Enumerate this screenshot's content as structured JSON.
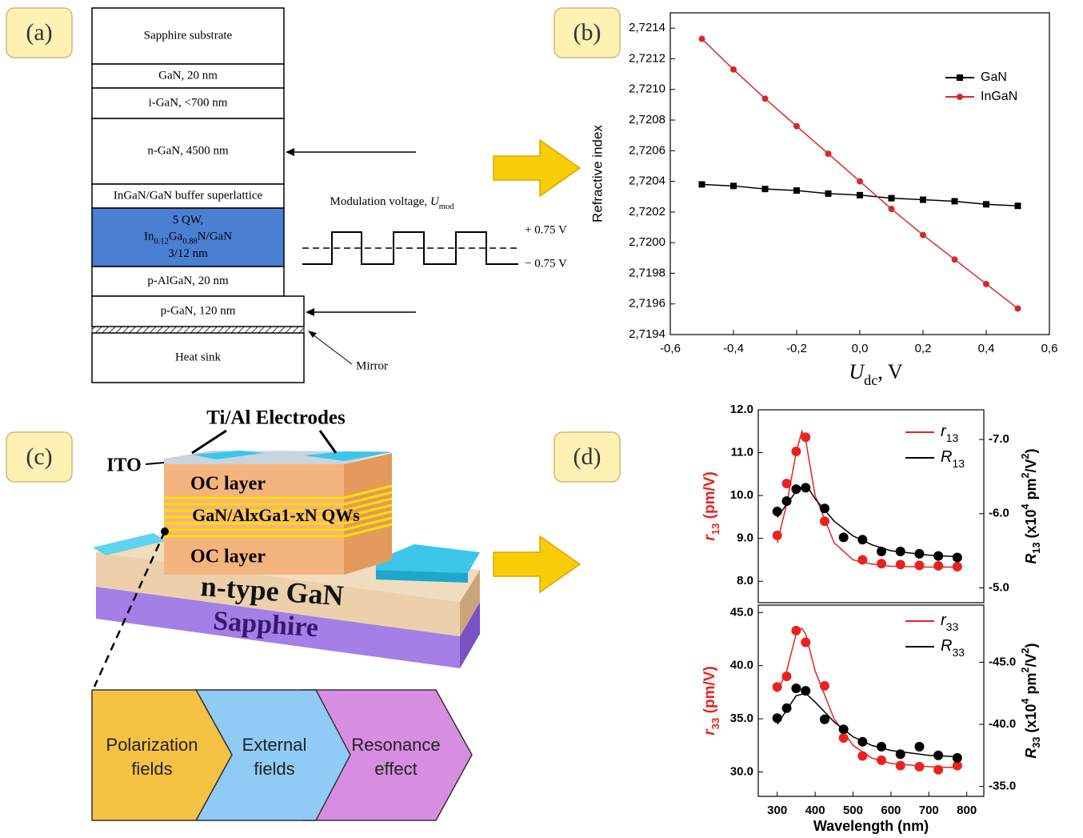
{
  "panel_labels": [
    "(a)",
    "(b)",
    "(c)",
    "(d)"
  ],
  "layer_stack": {
    "layers": [
      [
        "Sapphire substrate"
      ],
      [
        "GaN, 20 nm"
      ],
      [
        "i-GaN, <700 nm"
      ],
      [
        "n-GaN, 4500 nm"
      ],
      [
        "InGaN/GaN buffer superlattice"
      ],
      [
        "5 QW,",
        [
          {
            "t": "In"
          },
          {
            "sub": "0.12"
          },
          {
            "t": "Ga"
          },
          {
            "sub": "0.88"
          },
          {
            "t": "N/GaN"
          }
        ],
        "3/12 nm"
      ],
      [
        "p-AlGaN, 20 nm"
      ],
      [
        "p-GaN, 120 nm"
      ],
      [
        "Heat sink"
      ]
    ],
    "modulation": [
      {
        "t": "Modulation voltage, "
      },
      {
        "i": "U"
      },
      {
        "sub": "mod"
      }
    ],
    "levels": [
      "+ 0.75 V",
      "− 0.75 V"
    ],
    "mirror": "Mirror"
  },
  "device": {
    "electrodes": "Ti/Al Electrodes",
    "ito": "ITO",
    "oc_top": "OC layer",
    "qws": "GaN/AlxGa1-xN QWs",
    "oc_bottom": "OC layer",
    "n_gan": "n-type GaN",
    "sapphire": "Sapphire"
  },
  "mechanisms": [
    [
      "Polarization",
      "fields"
    ],
    [
      "External",
      "fields"
    ],
    [
      "Resonance",
      "effect"
    ]
  ],
  "chart_data": [
    {
      "type": "line",
      "ylabel": "Refractive index",
      "xlabel": [
        {
          "i": "U"
        },
        {
          "sub": "dc"
        },
        {
          "t": ", V"
        }
      ],
      "xlim": [
        -0.6,
        0.6
      ],
      "ylim": [
        2.7194,
        2.7215
      ],
      "xticks": [
        {
          "value": -0.6,
          "label": "-0,6"
        },
        {
          "value": -0.4,
          "label": "-0,4"
        },
        {
          "value": -0.2,
          "label": "-0,2"
        },
        {
          "value": 0,
          "label": "0,0"
        },
        {
          "value": 0.2,
          "label": "0,2"
        },
        {
          "value": 0.4,
          "label": "0,4"
        },
        {
          "value": 0.6,
          "label": "0,6"
        }
      ],
      "yticks": [
        {
          "value": 2.7194,
          "label": "2,7194"
        },
        {
          "value": 2.7196,
          "label": "2,7196"
        },
        {
          "value": 2.7198,
          "label": "2,7198"
        },
        {
          "value": 2.72,
          "label": "2,7200"
        },
        {
          "value": 2.7202,
          "label": "2,7202"
        },
        {
          "value": 2.7204,
          "label": "2,7204"
        },
        {
          "value": 2.7206,
          "label": "2,7206"
        },
        {
          "value": 2.7208,
          "label": "2,7208"
        },
        {
          "value": 2.721,
          "label": "2,7210"
        },
        {
          "value": 2.7212,
          "label": "2,7212"
        },
        {
          "value": 2.7214,
          "label": "2,7214"
        }
      ],
      "legend": "upper right",
      "series": [
        {
          "name": [
            {
              "t": "GaN"
            }
          ],
          "color": "#000000",
          "marker": "square",
          "x": [
            -0.5,
            -0.4,
            -0.3,
            -0.2,
            -0.1,
            0,
            0.1,
            0.2,
            0.3,
            0.4,
            0.5
          ],
          "values": [
            2.72038,
            2.72037,
            2.72035,
            2.72034,
            2.72032,
            2.72031,
            2.72029,
            2.72028,
            2.72027,
            2.72025,
            2.72024
          ]
        },
        {
          "name": [
            {
              "t": "InGaN"
            }
          ],
          "color": "#d42a2a",
          "marker": "circle",
          "x": [
            -0.5,
            -0.4,
            -0.3,
            -0.2,
            -0.1,
            0,
            0.1,
            0.2,
            0.3,
            0.4,
            0.5
          ],
          "values": [
            2.72133,
            2.72113,
            2.72094,
            2.72076,
            2.72058,
            2.7204,
            2.72022,
            2.72005,
            2.71989,
            2.71973,
            2.71957
          ]
        }
      ]
    },
    {
      "type": "scatter",
      "ylabel": [
        {
          "i": "r"
        },
        {
          "sub": "13"
        },
        {
          "t": " (pm/V)"
        }
      ],
      "y2label": [
        {
          "i": "R"
        },
        {
          "sub": "13"
        },
        {
          "t": " (x10"
        },
        {
          "sup": "4"
        },
        {
          "t": " pm"
        },
        {
          "sup": "2"
        },
        {
          "t": "/V"
        },
        {
          "sup": "2"
        },
        {
          "t": ")"
        }
      ],
      "xlim": [
        250,
        845
      ],
      "ylim": [
        7.5,
        12.0
      ],
      "y2lim": [
        -4.8,
        -7.4
      ],
      "yticks": [
        {
          "value": 8,
          "label": "8.0"
        },
        {
          "value": 9,
          "label": "9.0"
        },
        {
          "value": 10,
          "label": "10.0"
        },
        {
          "value": 11,
          "label": "11.0"
        },
        {
          "value": 12,
          "label": "12.0"
        }
      ],
      "y2ticks": [
        {
          "value": -5,
          "label": "-5.0"
        },
        {
          "value": -6,
          "label": "-6.0"
        },
        {
          "value": -7,
          "label": "-7.0"
        }
      ],
      "legend": "upper right",
      "series": [
        {
          "name": [
            {
              "i": "r"
            },
            {
              "sub": "13"
            }
          ],
          "color": "#e8231f",
          "axis": "y",
          "x": [
            300,
            325,
            350,
            375,
            425,
            525,
            575,
            625,
            675,
            725,
            775
          ],
          "values": [
            9.07,
            10.28,
            11.03,
            11.36,
            9.4,
            8.5,
            8.41,
            8.39,
            8.37,
            8.36,
            8.34
          ],
          "fit_x": [
            300,
            325,
            350,
            365,
            375,
            400,
            450,
            500,
            550,
            600,
            700,
            775
          ],
          "fit_values": [
            8.9,
            9.8,
            11.0,
            11.5,
            11.3,
            10.0,
            8.9,
            8.5,
            8.4,
            8.35,
            8.33,
            8.33
          ]
        },
        {
          "name": [
            {
              "i": "R"
            },
            {
              "sub": "13"
            }
          ],
          "color": "#000000",
          "axis": "y2",
          "x": [
            300,
            325,
            350,
            375,
            425,
            475,
            525,
            575,
            625,
            675,
            725,
            775
          ],
          "values": [
            -6.03,
            -6.17,
            -6.33,
            -6.35,
            -6.07,
            -5.68,
            -5.65,
            -5.49,
            -5.49,
            -5.46,
            -5.43,
            -5.41
          ],
          "fit_x": [
            300,
            350,
            375,
            400,
            450,
            500,
            550,
            600,
            700,
            775
          ],
          "fit_values": [
            -5.95,
            -6.3,
            -6.4,
            -6.2,
            -5.9,
            -5.7,
            -5.58,
            -5.5,
            -5.44,
            -5.42
          ]
        }
      ]
    },
    {
      "type": "scatter",
      "xlabel": "Wavelength (nm)",
      "ylabel": [
        {
          "i": "r"
        },
        {
          "sub": "33"
        },
        {
          "t": " (pm/V)"
        }
      ],
      "y2label": [
        {
          "i": "R"
        },
        {
          "sub": "33"
        },
        {
          "t": " (x10"
        },
        {
          "sup": "4"
        },
        {
          "t": " pm"
        },
        {
          "sup": "2"
        },
        {
          "t": "/V"
        },
        {
          "sup": "2"
        },
        {
          "t": ")"
        }
      ],
      "xlim": [
        250,
        845
      ],
      "ylim": [
        27.7,
        45.7
      ],
      "y2lim": [
        -34.2,
        -49.6
      ],
      "xticks": [
        300,
        400,
        500,
        600,
        700,
        800
      ],
      "yticks": [
        {
          "value": 30,
          "label": "30.0"
        },
        {
          "value": 35,
          "label": "35.0"
        },
        {
          "value": 40,
          "label": "40.0"
        },
        {
          "value": 45,
          "label": "45.0"
        }
      ],
      "y2ticks": [
        {
          "value": -35,
          "label": "-35.0"
        },
        {
          "value": -40,
          "label": "-40.0"
        },
        {
          "value": -45,
          "label": "-45.0"
        }
      ],
      "legend": "upper right",
      "series": [
        {
          "name": [
            {
              "i": "r"
            },
            {
              "sub": "33"
            }
          ],
          "color": "#e8231f",
          "axis": "y",
          "x": [
            300,
            325,
            350,
            375,
            425,
            475,
            525,
            575,
            625,
            675,
            725,
            775
          ],
          "values": [
            38.0,
            39.0,
            43.3,
            42.2,
            38.1,
            33.2,
            31.5,
            31.1,
            30.6,
            30.5,
            30.2,
            30.6
          ],
          "fit_x": [
            300,
            325,
            350,
            365,
            375,
            400,
            450,
            500,
            550,
            600,
            700,
            775
          ],
          "fit_values": [
            37.5,
            39.5,
            43.0,
            43.5,
            43.0,
            39.5,
            35.0,
            32.5,
            31.3,
            30.8,
            30.5,
            30.4
          ]
        },
        {
          "name": [
            {
              "i": "R"
            },
            {
              "sub": "33"
            }
          ],
          "color": "#000000",
          "axis": "y2",
          "x": [
            300,
            325,
            350,
            375,
            425,
            475,
            525,
            575,
            625,
            675,
            725,
            775
          ],
          "values": [
            -40.5,
            -41.3,
            -42.9,
            -42.7,
            -40.4,
            -39.6,
            -38.6,
            -38.2,
            -37.6,
            -38.2,
            -37.5,
            -37.3
          ],
          "fit_x": [
            300,
            350,
            375,
            400,
            450,
            500,
            550,
            600,
            700,
            775
          ],
          "fit_values": [
            -40.0,
            -42.3,
            -42.5,
            -41.8,
            -40.2,
            -39.0,
            -38.3,
            -37.9,
            -37.5,
            -37.4
          ]
        }
      ]
    }
  ]
}
